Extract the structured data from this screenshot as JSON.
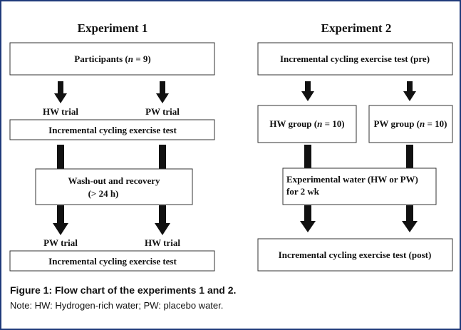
{
  "experiment1": {
    "title": "Experiment 1",
    "participants": {
      "prefix": "Participants (",
      "n": "n",
      "suffix": " = 9)"
    },
    "first_trials": [
      "HW trial",
      "PW trial"
    ],
    "test_1": "Incremental cycling exercise test",
    "washout": [
      "Wash-out and recovery",
      "(> 24 h)"
    ],
    "second_trials": [
      "PW trial",
      "HW trial"
    ],
    "test_2": "Incremental cycling exercise test"
  },
  "experiment2": {
    "title": "Experiment 2",
    "pre_test": "Incremental cycling exercise test  (pre)",
    "groups": [
      {
        "prefix": "HW group (",
        "n": "n",
        "suffix": " = 10)"
      },
      {
        "prefix": "PW group (",
        "n": "n",
        "suffix": " = 10)"
      }
    ],
    "intervention": [
      "Experimental water (HW or PW)",
      "for 2 wk"
    ],
    "post_test": "Incremental cycling exercise test  (post)"
  },
  "caption": {
    "title": "Figure 1: Flow chart of the experiments 1 and 2.",
    "note": "Note: HW: Hydrogen-rich water; PW: placebo water."
  }
}
